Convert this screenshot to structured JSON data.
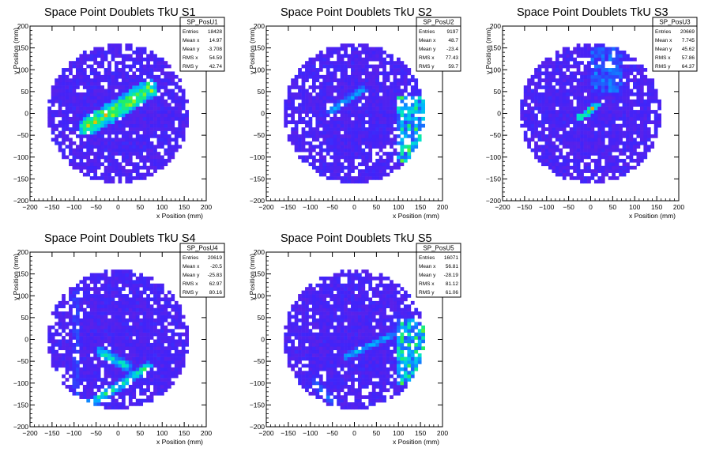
{
  "chart_data": [
    {
      "type": "heatmap",
      "title": "Space Point Doublets TkU S1",
      "xlabel": "x Position (mm)",
      "ylabel": "y Position (mm)",
      "xlim": [
        -200,
        200
      ],
      "ylim": [
        -200,
        200
      ],
      "xticks": [
        "−200",
        "−150",
        "−100",
        "−50",
        "0",
        "50",
        "100",
        "150",
        "200"
      ],
      "yticks": [
        "200",
        "150",
        "100",
        "50",
        "0",
        "−50",
        "−100",
        "−150",
        "−200"
      ],
      "stats": {
        "name": "SP_PosU1",
        "rows": [
          {
            "label": "Entries",
            "value": "18428"
          },
          {
            "label": "Mean x",
            "value": "14.97"
          },
          {
            "label": "Mean y",
            "value": "-3.708"
          },
          {
            "label": "RMS x",
            "value": "54.59"
          },
          {
            "label": "RMS y",
            "value": "42.74"
          }
        ]
      },
      "features": [
        {
          "kind": "band",
          "x1": -70,
          "y1": -30,
          "x2": 70,
          "y2": 55,
          "width": 22,
          "peak": 1.0
        }
      ]
    },
    {
      "type": "heatmap",
      "title": "Space Point Doublets TkU S2",
      "xlabel": "x Position (mm)",
      "ylabel": "y Position (mm)",
      "xlim": [
        -200,
        200
      ],
      "ylim": [
        -200,
        200
      ],
      "xticks": [
        "−200",
        "−150",
        "−100",
        "−50",
        "0",
        "50",
        "100",
        "150",
        "200"
      ],
      "yticks": [
        "200",
        "150",
        "100",
        "50",
        "0",
        "−50",
        "−100",
        "−150",
        "−200"
      ],
      "stats": {
        "name": "SP_PosU2",
        "rows": [
          {
            "label": "Entries",
            "value": "9197"
          },
          {
            "label": "Mean x",
            "value": "48.7"
          },
          {
            "label": "Mean y",
            "value": "-23.4"
          },
          {
            "label": "RMS x",
            "value": "77.43"
          },
          {
            "label": "RMS y",
            "value": "59.7"
          }
        ]
      },
      "features": [
        {
          "kind": "band",
          "x1": -55,
          "y1": 5,
          "x2": 20,
          "y2": 55,
          "width": 9,
          "peak": 0.55
        },
        {
          "kind": "box",
          "x1": 95,
          "x2": 165,
          "y1": -110,
          "y2": 40,
          "peak": 0.9
        }
      ]
    },
    {
      "type": "heatmap",
      "title": "Space Point Doublets TkU S3",
      "xlabel": "x Position (mm)",
      "ylabel": "y Position (mm)",
      "xlim": [
        -200,
        200
      ],
      "ylim": [
        -200,
        200
      ],
      "xticks": [
        "−200",
        "−150",
        "−100",
        "−50",
        "0",
        "50",
        "100",
        "150",
        "200"
      ],
      "yticks": [
        "200",
        "150",
        "100",
        "50",
        "0",
        "−50",
        "−100",
        "−150",
        "−200"
      ],
      "stats": {
        "name": "SP_PosU3",
        "rows": [
          {
            "label": "Entries",
            "value": "20669"
          },
          {
            "label": "Mean x",
            "value": "7.745"
          },
          {
            "label": "Mean y",
            "value": "45.62"
          },
          {
            "label": "RMS x",
            "value": "57.86"
          },
          {
            "label": "RMS y",
            "value": "64.37"
          }
        ]
      },
      "features": [
        {
          "kind": "band",
          "x1": -25,
          "y1": -10,
          "x2": 15,
          "y2": 20,
          "width": 8,
          "peak": 1.0
        },
        {
          "kind": "box",
          "x1": 0,
          "x2": 70,
          "y1": 50,
          "y2": 150,
          "peak": 0.45
        }
      ]
    },
    {
      "type": "heatmap",
      "title": "Space Point Doublets TkU S4",
      "xlabel": "x Position (mm)",
      "ylabel": "y Position (mm)",
      "xlim": [
        -200,
        200
      ],
      "ylim": [
        -200,
        200
      ],
      "xticks": [
        "−200",
        "−150",
        "−100",
        "−50",
        "0",
        "50",
        "100",
        "150",
        "200"
      ],
      "yticks": [
        "200",
        "150",
        "100",
        "50",
        "0",
        "−50",
        "−100",
        "−150",
        "−200"
      ],
      "stats": {
        "name": "SP_PosU4",
        "rows": [
          {
            "label": "Entries",
            "value": "20619"
          },
          {
            "label": "Mean x",
            "value": "-20.5"
          },
          {
            "label": "Mean y",
            "value": "-25.83"
          },
          {
            "label": "RMS x",
            "value": "62.97"
          },
          {
            "label": "RMS y",
            "value": "80.16"
          }
        ]
      },
      "features": [
        {
          "kind": "band",
          "x1": -65,
          "y1": -150,
          "x2": 70,
          "y2": -60,
          "width": 10,
          "peak": 0.75
        },
        {
          "kind": "band",
          "x1": -40,
          "y1": -30,
          "x2": 20,
          "y2": -60,
          "width": 12,
          "peak": 0.7
        },
        {
          "kind": "band",
          "x1": -95,
          "y1": 110,
          "x2": -95,
          "y2": -140,
          "width": 6,
          "peak": 0.35
        }
      ]
    },
    {
      "type": "heatmap",
      "title": "Space Point Doublets TkU S5",
      "xlabel": "x Position (mm)",
      "ylabel": "y Position (mm)",
      "xlim": [
        -200,
        200
      ],
      "ylim": [
        -200,
        200
      ],
      "xticks": [
        "−200",
        "−150",
        "−100",
        "−50",
        "0",
        "50",
        "100",
        "150",
        "200"
      ],
      "yticks": [
        "200",
        "150",
        "100",
        "50",
        "0",
        "−50",
        "−100",
        "−150",
        "−200"
      ],
      "stats": {
        "name": "SP_PosU5",
        "rows": [
          {
            "label": "Entries",
            "value": "16071"
          },
          {
            "label": "Mean x",
            "value": "56.81"
          },
          {
            "label": "Mean y",
            "value": "-28.19"
          },
          {
            "label": "RMS x",
            "value": "81.12"
          },
          {
            "label": "RMS y",
            "value": "61.06"
          }
        ]
      },
      "features": [
        {
          "kind": "band",
          "x1": -20,
          "y1": -40,
          "x2": 95,
          "y2": 15,
          "width": 8,
          "peak": 0.5
        },
        {
          "kind": "box",
          "x1": 95,
          "x2": 165,
          "y1": -100,
          "y2": 45,
          "peak": 0.9
        },
        {
          "kind": "band",
          "x1": -90,
          "y1": -100,
          "x2": -50,
          "y2": -140,
          "width": 10,
          "peak": 0.4
        }
      ]
    }
  ]
}
